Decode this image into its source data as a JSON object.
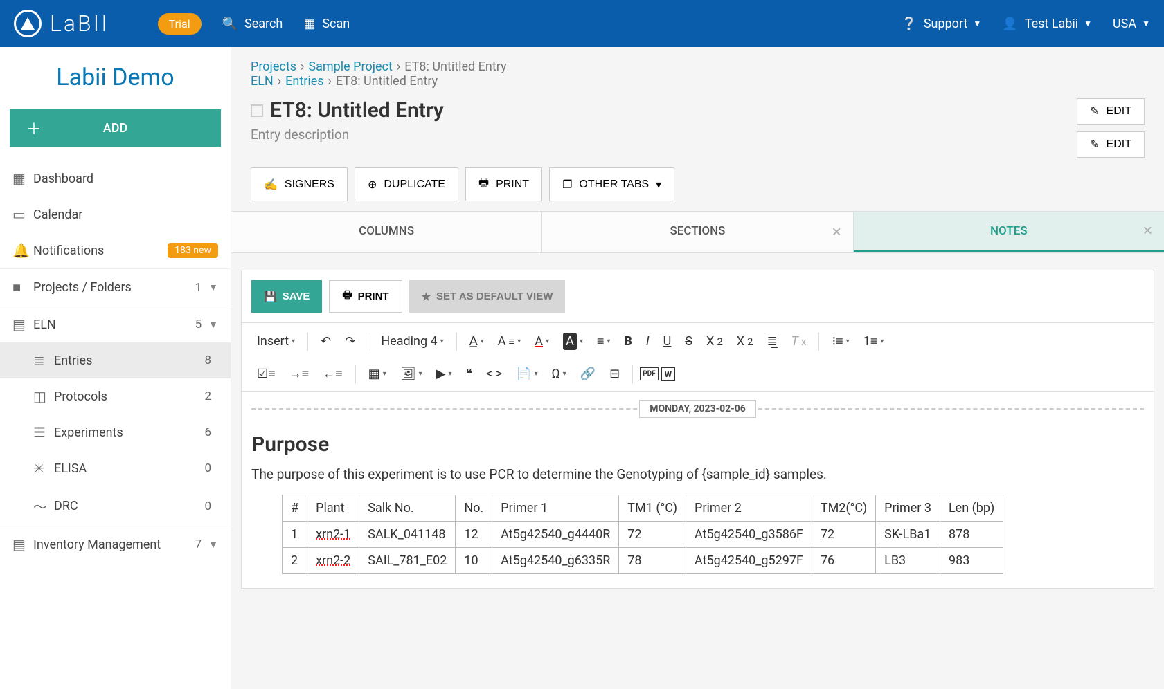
{
  "topbar": {
    "logo_text": "LaBII",
    "trial": "Trial",
    "search": "Search",
    "scan": "Scan",
    "support": "Support",
    "user": "Test Labii",
    "region": "USA"
  },
  "sidebar": {
    "org": "Labii Demo",
    "add": "ADD",
    "items": [
      {
        "icon": "▦",
        "label": "Dashboard"
      },
      {
        "icon": "▭",
        "label": "Calendar"
      },
      {
        "icon": "🔔",
        "label": "Notifications",
        "badge": "183 new"
      },
      {
        "icon": "■",
        "label": "Projects / Folders",
        "count": "1",
        "chev": true
      },
      {
        "icon": "▤",
        "label": "ELN",
        "count": "5",
        "chev": true
      },
      {
        "icon": "≣",
        "label": "Entries",
        "count": "8",
        "sub": true,
        "active": true
      },
      {
        "icon": "◫",
        "label": "Protocols",
        "count": "2",
        "sub": true
      },
      {
        "icon": "☰",
        "label": "Experiments",
        "count": "6",
        "sub": true
      },
      {
        "icon": "✳",
        "label": "ELISA",
        "count": "0",
        "sub": true
      },
      {
        "icon": "〜",
        "label": "DRC",
        "count": "0",
        "sub": true
      },
      {
        "icon": "▤",
        "label": "Inventory Management",
        "count": "7",
        "chev": true
      }
    ]
  },
  "breadcrumbs": {
    "row1": [
      {
        "text": "Projects",
        "link": true
      },
      {
        "text": "Sample Project",
        "link": true
      },
      {
        "text": "ET8: Untitled Entry",
        "link": false
      }
    ],
    "row2": [
      {
        "text": "ELN",
        "link": true
      },
      {
        "text": "Entries",
        "link": true
      },
      {
        "text": "ET8: Untitled Entry",
        "link": false
      }
    ]
  },
  "page": {
    "title": "ET8: Untitled Entry",
    "desc": "Entry description",
    "edit": "EDIT",
    "actions": {
      "signers": "SIGNERS",
      "duplicate": "DUPLICATE",
      "print": "PRINT",
      "other": "OTHER TABS"
    }
  },
  "tabs": [
    {
      "label": "COLUMNS",
      "closable": false
    },
    {
      "label": "SECTIONS",
      "closable": true
    },
    {
      "label": "NOTES",
      "closable": true,
      "active": true
    }
  ],
  "editor": {
    "save": "SAVE",
    "print": "PRINT",
    "default": "SET AS DEFAULT VIEW",
    "insert": "Insert",
    "heading": "Heading 4",
    "date": "MONDAY, 2023-02-06"
  },
  "content": {
    "heading": "Purpose",
    "paragraph": "The purpose of this experiment is to use PCR to determine the Genotyping of {sample_id} samples.",
    "table": {
      "headers": [
        "#",
        "Plant",
        "Salk No.",
        "No.",
        "Primer 1",
        "TM1 (°C)",
        "Primer 2",
        "TM2(°C)",
        "Primer 3",
        "Len (bp)"
      ],
      "rows": [
        [
          "1",
          "xrn2-1",
          "SALK_041148",
          "12",
          "At5g42540_g4440R",
          "72",
          "At5g42540_g3586F",
          "72",
          "SK-LBa1",
          "878"
        ],
        [
          "2",
          "xrn2-2",
          "SAIL_781_E02",
          "10",
          "At5g42540_g6335R",
          "78",
          "At5g42540_g5297F",
          "76",
          "LB3",
          "983"
        ]
      ]
    }
  }
}
